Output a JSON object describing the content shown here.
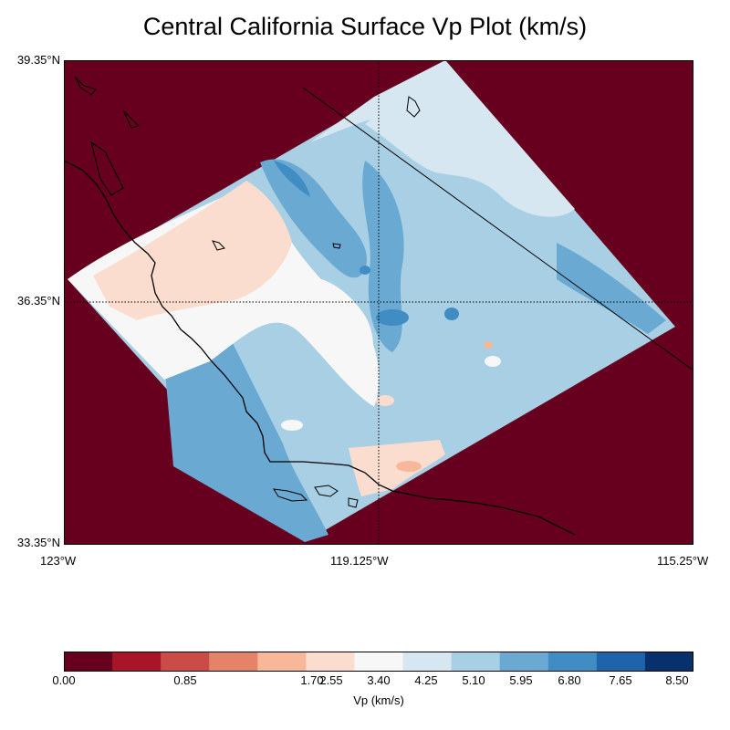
{
  "title": "Central California Surface Vp Plot (km/s)",
  "map": {
    "background_color": "#67001f",
    "latitude_labels": [
      "39.35°N",
      "36.35°N",
      "33.35°N"
    ],
    "longitude_labels": [
      "123°W",
      "119.125°W",
      "115.25°W"
    ],
    "gridlines": "dotted"
  },
  "colorbar": {
    "label": "Vp (km/s)",
    "tick_labels": [
      "0.00",
      "0.85",
      "1.70",
      "2.55",
      "3.40",
      "4.25",
      "5.10",
      "5.95",
      "6.80",
      "7.65",
      "8.50"
    ],
    "bins": [
      {
        "from": 0.0,
        "to": 0.53,
        "color": "#67001f"
      },
      {
        "from": 0.53,
        "to": 1.06,
        "color": "#a81529"
      },
      {
        "from": 1.06,
        "to": 1.59,
        "color": "#cb4b48"
      },
      {
        "from": 1.59,
        "to": 2.13,
        "color": "#e58368"
      },
      {
        "from": 2.13,
        "to": 2.66,
        "color": "#f7b799"
      },
      {
        "from": 2.66,
        "to": 3.19,
        "color": "#fbddcf"
      },
      {
        "from": 3.19,
        "to": 3.72,
        "color": "#f7f7f7"
      },
      {
        "from": 3.72,
        "to": 4.25,
        "color": "#d6e7f1"
      },
      {
        "from": 4.25,
        "to": 4.78,
        "color": "#a9cfe5"
      },
      {
        "from": 4.78,
        "to": 5.31,
        "color": "#6aaad2"
      },
      {
        "from": 5.31,
        "to": 5.84,
        "color": "#3f8dc3"
      },
      {
        "from": 5.84,
        "to": 6.38,
        "color": "#1f64aa"
      },
      {
        "from": 6.38,
        "to": 8.5,
        "color": "#08306b"
      }
    ]
  }
}
